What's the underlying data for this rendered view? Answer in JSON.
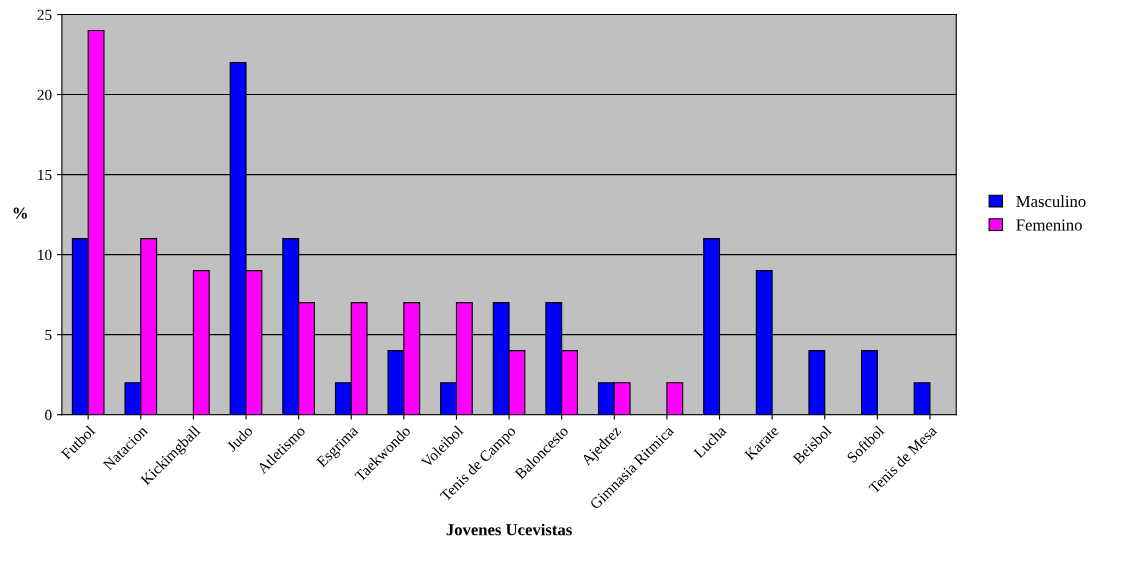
{
  "chart_data": {
    "type": "bar",
    "xlabel": "Jovenes Ucevistas",
    "ylabel": "%",
    "categories": [
      "Futbol",
      "Natacion",
      "Kickimgball",
      "Judo",
      "Atletismo",
      "Esgrima",
      "Taekwondo",
      "Voleibol",
      "Tenis de Campo",
      "Baloncesto",
      "Ajedrez",
      "Gimnasia Ritmica",
      "Lucha",
      "Karate",
      "Beisbol",
      "Softbol",
      "Tenis de Mesa"
    ],
    "series": [
      {
        "name": "Masculino",
        "color": "#0000ff",
        "values": [
          11,
          2,
          null,
          22,
          11,
          2,
          4,
          2,
          7,
          7,
          2,
          null,
          11,
          9,
          4,
          4,
          2
        ]
      },
      {
        "name": "Femenino",
        "color": "#ff00ff",
        "values": [
          24,
          11,
          9,
          9,
          7,
          7,
          7,
          7,
          4,
          4,
          2,
          2,
          null,
          null,
          null,
          null,
          null
        ]
      }
    ],
    "ylim": [
      0,
      25
    ],
    "yticks": [
      0,
      5,
      10,
      15,
      20,
      25
    ],
    "grid": "y",
    "legend": "right"
  }
}
